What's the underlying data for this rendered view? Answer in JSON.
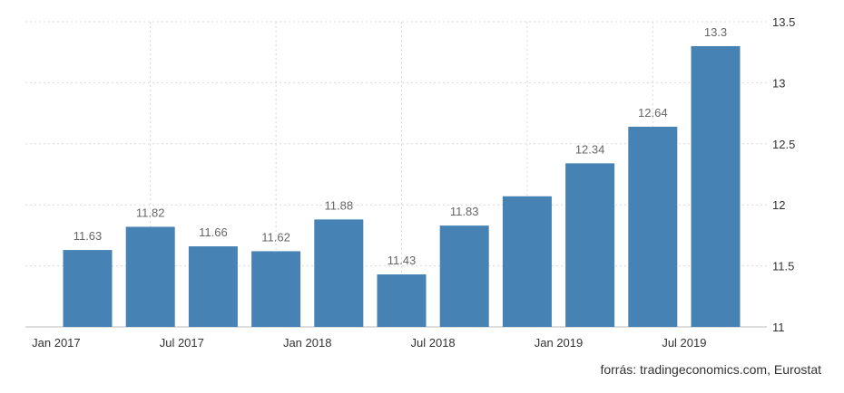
{
  "chart_data": {
    "type": "bar",
    "categories": [
      "2017-01",
      "2017-04",
      "2017-07",
      "2017-10",
      "2018-01",
      "2018-04",
      "2018-07",
      "2018-10",
      "2019-01",
      "2019-04",
      "2019-07"
    ],
    "values": [
      11.63,
      11.82,
      11.66,
      11.62,
      11.88,
      11.43,
      11.83,
      12.07,
      12.34,
      12.64,
      13.3
    ],
    "value_labels": [
      "11.63",
      "11.82",
      "11.66",
      "11.62",
      "11.88",
      "11.43",
      "11.83",
      "",
      "12.34",
      "12.64",
      "13.3"
    ],
    "x_tick_labels": [
      "Jan 2017",
      "Jul 2017",
      "Jan 2018",
      "Jul 2018",
      "Jan 2019",
      "Jul 2019"
    ],
    "x_tick_indices": [
      0,
      2,
      4,
      6,
      8,
      10
    ],
    "y_ticks": [
      11,
      11.5,
      12,
      12.5,
      13,
      13.5
    ],
    "ylim": [
      11,
      13.5
    ],
    "title": "",
    "xlabel": "",
    "ylabel": "",
    "grid": true,
    "bar_color": "#4682b4"
  },
  "source": "forrás: tradingeconomics.com, Eurostat"
}
